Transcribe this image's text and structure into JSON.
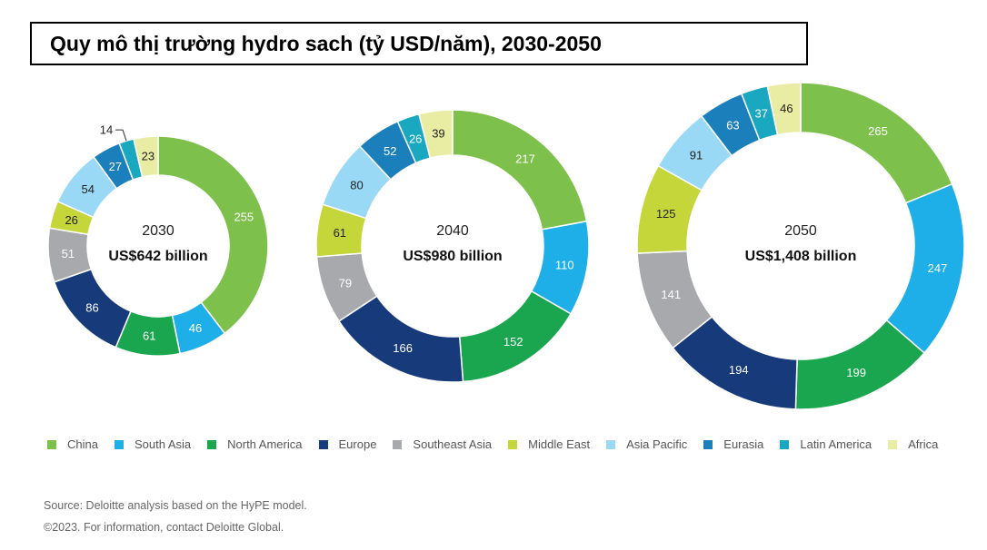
{
  "title": "Quy mô thị trường hydro sach (tỷ USD/năm), 2030-2050",
  "chart_data": {
    "type": "pie",
    "title": "Quy mô thị trường hydro sach (tỷ USD/năm), 2030-2050",
    "categories": [
      "China",
      "South Asia",
      "North America",
      "Europe",
      "Southeast Asia",
      "Middle East",
      "Asia Pacific",
      "Eurasia",
      "Latin America",
      "Africa"
    ],
    "colors": [
      "#7dc04b",
      "#1eaee8",
      "#1aa64e",
      "#173a7a",
      "#a7a9ac",
      "#c4d63a",
      "#9ad9f5",
      "#1b7fbc",
      "#1aa7c0",
      "#e9eda3"
    ],
    "charts": [
      {
        "year": "2030",
        "total": "US$642 billion",
        "values": [
          255,
          46,
          61,
          86,
          51,
          26,
          54,
          27,
          14,
          23
        ]
      },
      {
        "year": "2040",
        "total": "US$980 billion",
        "values": [
          217,
          110,
          152,
          166,
          79,
          61,
          80,
          52,
          26,
          39
        ]
      },
      {
        "year": "2050",
        "total": "US$1,408 billion",
        "values": [
          265,
          247,
          199,
          194,
          141,
          125,
          91,
          63,
          37,
          46
        ]
      }
    ],
    "legend_position": "bottom"
  },
  "footer": {
    "source": "Source: Deloitte analysis based on the HyPE model.",
    "copyright": "©2023. For information, contact Deloitte Global."
  }
}
